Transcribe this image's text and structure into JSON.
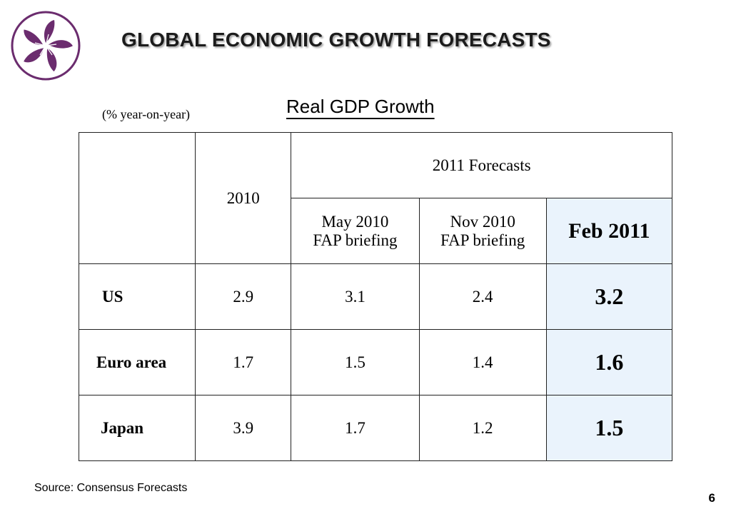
{
  "title": "GLOBAL ECONOMIC GROWTH FORECASTS",
  "subtitle": "Real GDP Growth",
  "unit_note": "(% year-on-year)",
  "table": {
    "col_2010": "2010",
    "forecast_group": "2011 Forecasts",
    "col_may_line1": "May 2010",
    "col_may_line2": "FAP briefing",
    "col_nov_line1": "Nov 2010",
    "col_nov_line2": "FAP briefing",
    "col_feb": "Feb 2011",
    "rows": [
      {
        "label": "US",
        "y2010": "2.9",
        "may": "3.1",
        "nov": "2.4",
        "feb": "3.2"
      },
      {
        "label": "Euro area",
        "y2010": "1.7",
        "may": "1.5",
        "nov": "1.4",
        "feb": "1.6"
      },
      {
        "label": "Japan",
        "y2010": "3.9",
        "may": "1.7",
        "nov": "1.2",
        "feb": "1.5"
      }
    ]
  },
  "source": "Source: Consensus Forecasts",
  "page_number": "6",
  "colors": {
    "logo_purple": "#6b2c6e",
    "highlight": "#eaf3fc"
  },
  "logo_icon": "bauhinia-flower-icon"
}
